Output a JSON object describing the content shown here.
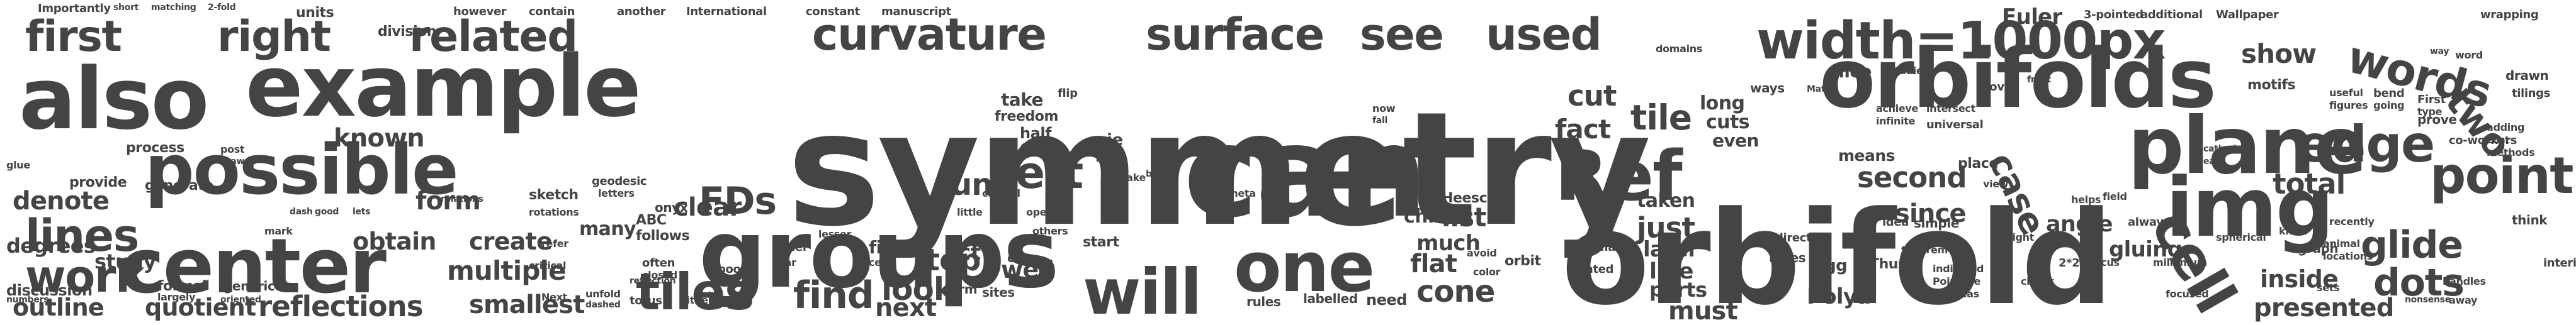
{
  "colors": {
    "text": "#444444",
    "background": "#ffffff"
  },
  "words": [
    "symmetry",
    "orbifold",
    "can",
    "groups",
    "orbifolds",
    "also",
    "example",
    "possible",
    "plane",
    "center",
    "img",
    "cell",
    "width=1000px",
    "curvature",
    "surface",
    "see",
    "used",
    "first",
    "right",
    "related",
    "edge",
    "point",
    "tiles",
    "find",
    "one",
    "will",
    "Ref",
    "lines",
    "work",
    "unit",
    "FDs",
    "left",
    "glide",
    "dots",
    "two",
    "words",
    "show",
    "tile",
    "fact",
    "cut",
    "long",
    "cuts",
    "even",
    "known",
    "form",
    "obtain",
    "create",
    "multiple",
    "reflections",
    "smallest",
    "outline",
    "quotient",
    "generic",
    "look",
    "cone",
    "flat",
    "orbit",
    "line",
    "parts",
    "must",
    "second",
    "since",
    "case",
    "angle",
    "total",
    "inside",
    "presented",
    "study",
    "provide",
    "generate",
    "process",
    "units",
    "division",
    "however",
    "contain",
    "another",
    "International",
    "constant",
    "manuscript",
    "take",
    "half",
    "One",
    "pie",
    "i.e",
    "top",
    "term",
    "start",
    "chi",
    "Heesch",
    "list",
    "clear",
    "just",
    "taken",
    "later",
    "means",
    "Euler",
    "3-pointed",
    "additional",
    "Wallpaper",
    "wrapping",
    "motifs",
    "drawn",
    "tilings",
    "adding",
    "cost",
    "methods",
    "co-workers",
    "prove",
    "bend",
    "going",
    "useful",
    "figures",
    "First",
    "type",
    "think",
    "interior",
    "focus",
    "gluing",
    "pgg",
    "Polya",
    "Thus",
    "indicated",
    "Poincare",
    "whereas",
    "theorem",
    "simple",
    "idea",
    "direct",
    "holes",
    "stated",
    "image",
    "avoid",
    "color",
    "much",
    "sites",
    "well",
    "next",
    "rules",
    "labelled",
    "need",
    "flip",
    "cow",
    "act",
    "order",
    "far",
    "book",
    "cells",
    "Next",
    "unfold",
    "dashed",
    "torus",
    "reflection",
    "either",
    "often",
    "closed",
    "refer",
    "critical",
    "numbers",
    "degrees",
    "denote",
    "discussion",
    "formal",
    "largely",
    "oriented",
    "many",
    "geodesic",
    "letters",
    "sketch",
    "rotations",
    "relations",
    "ABC",
    "follows",
    "onyx",
    "Importantly",
    "short",
    "matching",
    "2-fold",
    "domains",
    "freedom",
    "others",
    "open",
    "cake",
    "meet",
    "able",
    "now",
    "fall",
    "ways",
    "Matt",
    "nice",
    "studies",
    "way",
    "graph",
    "animal",
    "locations",
    "knew",
    "recently",
    "sets",
    "handles",
    "away",
    "nonsense",
    "lesser",
    "fish",
    "meta",
    "little",
    "careful",
    "beta",
    "achieve",
    "infinite",
    "universal",
    "intersect",
    "place",
    "view",
    "might",
    "2*22",
    "chunk",
    "helps",
    "always",
    "field",
    "millenium",
    "focused",
    "glue",
    "post",
    "draw",
    "mark",
    "dash",
    "good",
    "lets",
    "spherical",
    "word",
    "cover",
    "front",
    "cathedral",
    "easy"
  ]
}
